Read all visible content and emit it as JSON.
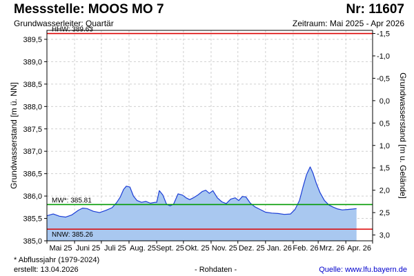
{
  "header": {
    "title": "Messstelle: MOOS MO 7",
    "station_nr": "Nr: 11607",
    "subtitle": "Grundwasserleiter: Quartär",
    "period": "Zeitraum: Mai 2025 - Apr 2026"
  },
  "footer": {
    "footnote": "* Abflussjahr (1979-2024)",
    "created": "erstellt:  13.04.2026",
    "rawdata": "- Rohdaten -",
    "source": "Quelle:  www.lfu.bayern.de"
  },
  "colors": {
    "area_fill": "#a9c8f0",
    "line": "#1a3cd6",
    "hhw": "#dd0000",
    "nnw": "#dd0000",
    "mw": "#009900",
    "grid": "#cfcfcf"
  },
  "chart_data": {
    "type": "area",
    "ylabel": "Grundwasserstand [m ü. NN]",
    "ylabel_right": "Grundwasserstand [m u. Gelände]",
    "ylim": [
      385.0,
      389.7
    ],
    "yticks": [
      "385,0",
      "385,5",
      "386,0",
      "386,5",
      "387,0",
      "387,5",
      "388,0",
      "388,5",
      "389,0",
      "389,5"
    ],
    "right_axis": {
      "reference_level": 388.13,
      "ticks": [
        "-1,5",
        "-1,0",
        "-0,5",
        "0,0",
        "0,5",
        "1,0",
        "1,5",
        "2,0",
        "2,5",
        "3,0"
      ]
    },
    "xlim": [
      "2025-05-01",
      "2026-05-01"
    ],
    "x_tick_labels": [
      "Mai 25",
      "Juni 25",
      "Juli 25",
      "Aug. 25",
      "Sept. 25",
      "Okt. 25",
      "Nov. 25",
      "Dez. 25",
      "Jan. 26",
      "Feb. 26",
      "Mrz. 26",
      "Apr. 26"
    ],
    "grid": true,
    "reference_lines": [
      {
        "label": "HHW: 389.63",
        "value": 389.63,
        "color": "#dd0000"
      },
      {
        "label": "MW*: 385.81",
        "value": 385.81,
        "color": "#009900"
      },
      {
        "label": "NNW: 385.26",
        "value": 385.26,
        "color": "#dd0000"
      }
    ],
    "series": [
      {
        "x": [
          "2025-05-01",
          "2025-05-08",
          "2025-05-15",
          "2025-05-22",
          "2025-05-29",
          "2025-06-05",
          "2025-06-10",
          "2025-06-15",
          "2025-06-22",
          "2025-06-29",
          "2025-07-06",
          "2025-07-13",
          "2025-07-18",
          "2025-07-22",
          "2025-07-26",
          "2025-07-29",
          "2025-08-02",
          "2025-08-06",
          "2025-08-10",
          "2025-08-15",
          "2025-08-20",
          "2025-08-25",
          "2025-08-30",
          "2025-09-01",
          "2025-09-04",
          "2025-09-08",
          "2025-09-12",
          "2025-09-16",
          "2025-09-20",
          "2025-09-25",
          "2025-09-30",
          "2025-10-04",
          "2025-10-08",
          "2025-10-12",
          "2025-10-17",
          "2025-10-22",
          "2025-10-26",
          "2025-10-30",
          "2025-11-03",
          "2025-11-08",
          "2025-11-13",
          "2025-11-18",
          "2025-11-23",
          "2025-11-28",
          "2025-12-02",
          "2025-12-06",
          "2025-12-10",
          "2025-12-15",
          "2025-12-20",
          "2025-12-26",
          "2026-01-01",
          "2026-01-08",
          "2026-01-15",
          "2026-01-22",
          "2026-01-29",
          "2026-02-03",
          "2026-02-08",
          "2026-02-12",
          "2026-02-16",
          "2026-02-20",
          "2026-02-23",
          "2026-02-27",
          "2026-03-03",
          "2026-03-08",
          "2026-03-13",
          "2026-03-18",
          "2026-03-23",
          "2026-03-28",
          "2026-04-03",
          "2026-04-09",
          "2026-04-13"
        ],
        "values": [
          385.56,
          385.6,
          385.55,
          385.53,
          385.58,
          385.68,
          385.73,
          385.72,
          385.66,
          385.63,
          385.68,
          385.74,
          385.85,
          385.97,
          386.15,
          386.22,
          386.2,
          386.0,
          385.9,
          385.86,
          385.88,
          385.84,
          385.86,
          385.86,
          386.12,
          386.02,
          385.82,
          385.78,
          385.82,
          386.05,
          386.02,
          385.96,
          385.92,
          385.96,
          386.02,
          386.1,
          386.13,
          386.06,
          386.12,
          385.96,
          385.87,
          385.83,
          385.93,
          385.96,
          385.9,
          385.99,
          385.98,
          385.84,
          385.76,
          385.7,
          385.64,
          385.62,
          385.61,
          385.59,
          385.6,
          385.7,
          385.9,
          386.2,
          386.48,
          386.65,
          386.52,
          386.28,
          386.08,
          385.9,
          385.8,
          385.75,
          385.71,
          385.69,
          385.7,
          385.71,
          385.72
        ]
      }
    ]
  }
}
